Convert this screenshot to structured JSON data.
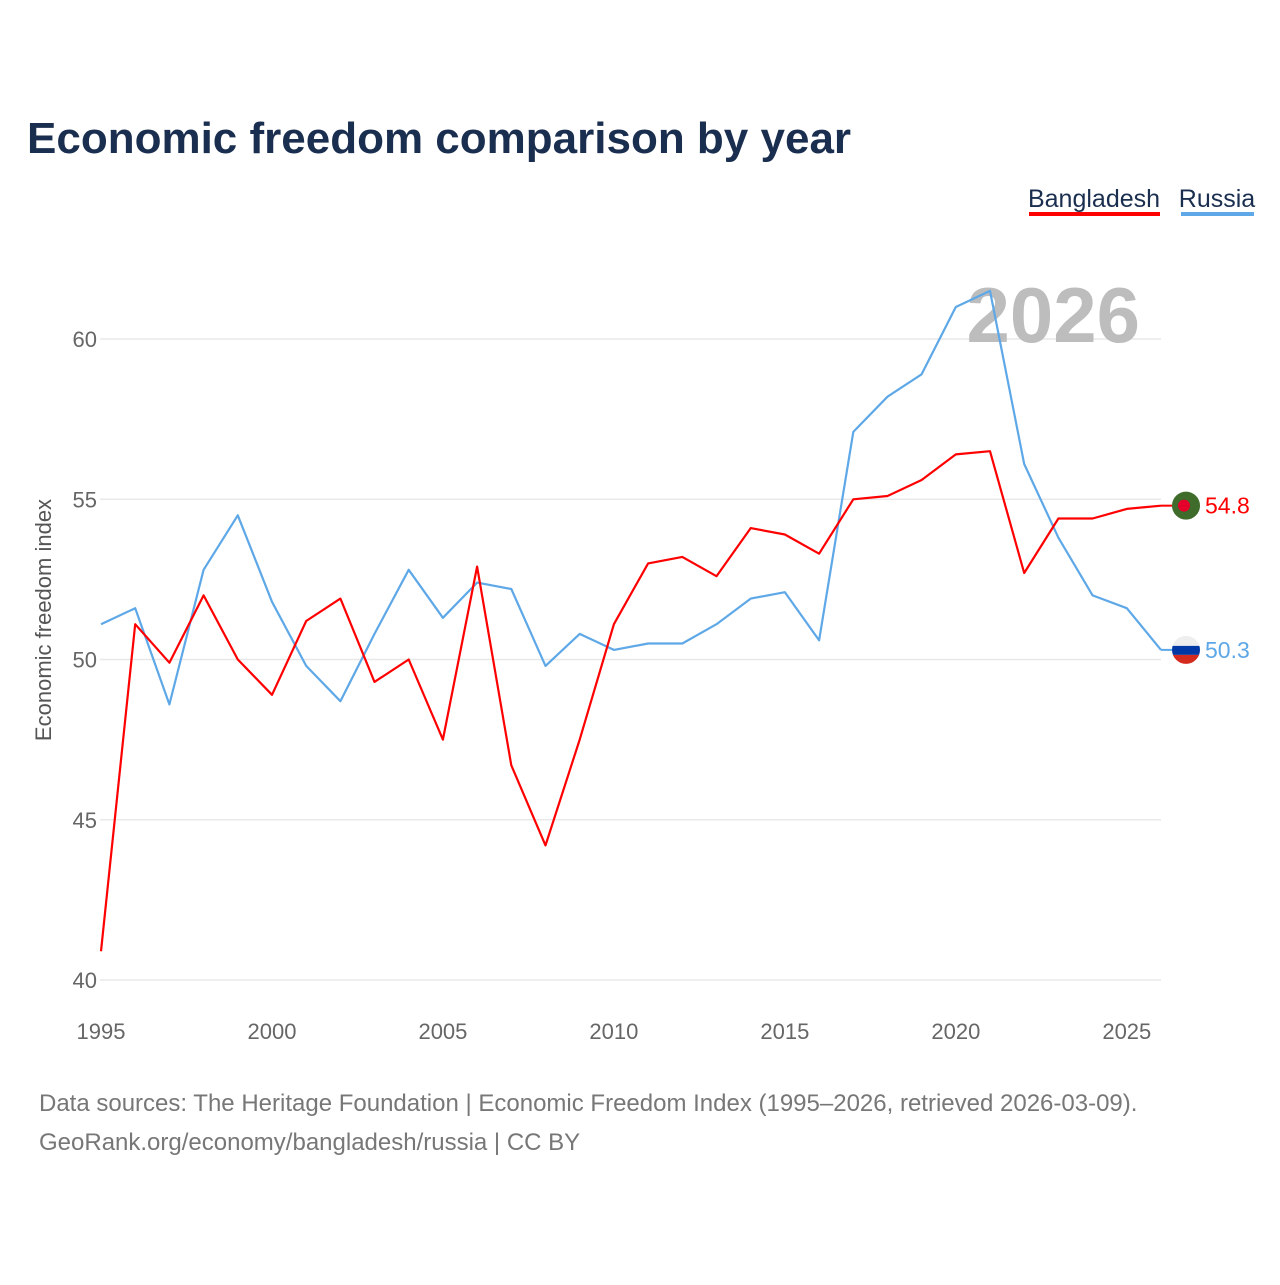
{
  "chart_data": {
    "type": "line",
    "title": "Economic freedom comparison by year",
    "xlabel": "",
    "ylabel": "Economic freedom index",
    "xlim": [
      1995,
      2026
    ],
    "ylim": [
      40,
      62.5
    ],
    "x_ticks": [
      "1995",
      "2000",
      "2005",
      "2010",
      "2015",
      "2020",
      "2025"
    ],
    "y_ticks": [
      "40",
      "45",
      "50",
      "55",
      "60"
    ],
    "grid": true,
    "legend_placement": "top-right",
    "watermark_year": "2026",
    "x": [
      1995,
      1996,
      1997,
      1998,
      1999,
      2000,
      2001,
      2002,
      2003,
      2004,
      2005,
      2006,
      2007,
      2008,
      2009,
      2010,
      2011,
      2012,
      2013,
      2014,
      2015,
      2016,
      2017,
      2018,
      2019,
      2020,
      2021,
      2022,
      2023,
      2024,
      2025,
      2026
    ],
    "series": [
      {
        "name": "Bangladesh",
        "color": "#ff0000",
        "end_label": "54.8",
        "flag": "bangladesh-flag",
        "values": [
          40.9,
          51.1,
          49.9,
          52.0,
          50.0,
          48.9,
          51.2,
          51.9,
          49.3,
          50.0,
          47.5,
          52.9,
          46.7,
          44.2,
          47.5,
          51.1,
          53.0,
          53.2,
          52.6,
          54.1,
          53.9,
          53.3,
          55.0,
          55.1,
          55.6,
          56.4,
          56.5,
          52.7,
          54.4,
          54.4,
          54.7,
          54.8
        ]
      },
      {
        "name": "Russia",
        "color": "#5ea8e8",
        "end_label": "50.3",
        "flag": "russia-flag",
        "values": [
          51.1,
          51.6,
          48.6,
          52.8,
          54.5,
          51.8,
          49.8,
          48.7,
          50.8,
          52.8,
          51.3,
          52.4,
          52.2,
          49.8,
          50.8,
          50.3,
          50.5,
          50.5,
          51.1,
          51.9,
          52.1,
          50.6,
          57.1,
          58.2,
          58.9,
          61.0,
          61.5,
          56.1,
          53.8,
          52.0,
          51.6,
          50.3
        ]
      }
    ]
  },
  "footer": {
    "line1": "Data sources: The Heritage Foundation | Economic Freedom Index (1995–2026, retrieved 2026-03-09).",
    "line2": "GeoRank.org/economy/bangladesh/russia | CC BY"
  }
}
